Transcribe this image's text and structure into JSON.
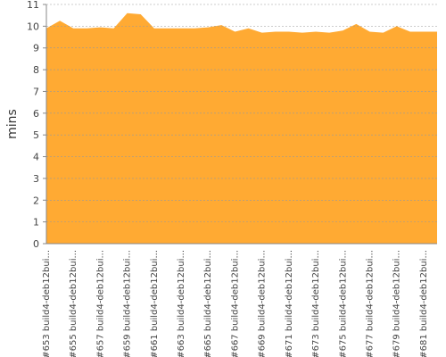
{
  "chart_data": {
    "type": "area",
    "y_label": "mins",
    "color": "#ffaa33",
    "grid": true,
    "categories": [
      "#653 build4-deb12bui...",
      null,
      "#655 build4-deb12bui...",
      null,
      "#657 build4-deb12bui...",
      null,
      "#659 build4-deb12bui...",
      null,
      "#661 build4-deb12bui...",
      null,
      "#663 build4-deb12bui...",
      null,
      "#665 build4-deb12bui...",
      null,
      "#667 build4-deb12bui...",
      null,
      "#669 build4-deb12bui...",
      null,
      "#671 build4-deb12bui...",
      null,
      "#673 build4-deb12bui...",
      null,
      "#675 build4-deb12bui...",
      null,
      "#677 build4-deb12bui...",
      null,
      "#679 build4-deb12bui...",
      null,
      "#681 build4-deb12bui...",
      null
    ],
    "values": [
      9.9,
      10.25,
      9.9,
      9.9,
      9.95,
      9.9,
      10.6,
      10.55,
      9.9,
      9.9,
      9.9,
      9.9,
      9.95,
      10.05,
      9.75,
      9.9,
      9.7,
      9.75,
      9.75,
      9.7,
      9.75,
      9.7,
      9.8,
      10.1,
      9.75,
      9.7,
      10.0,
      9.75,
      9.75,
      9.75
    ],
    "ylim": [
      0,
      11
    ],
    "yticks": [
      0,
      1,
      2,
      3,
      4,
      5,
      6,
      7,
      8,
      9,
      10,
      11
    ]
  }
}
